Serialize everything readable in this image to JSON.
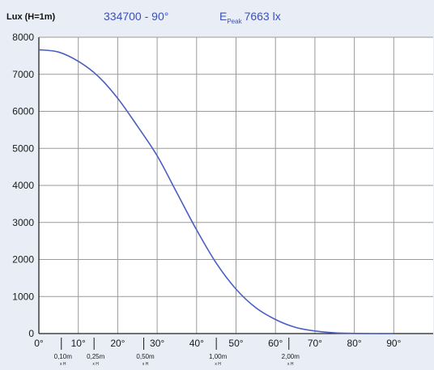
{
  "chart_data": {
    "type": "line",
    "title": "334700 - 90°",
    "ylabel": "Lux (H=1m)",
    "xlabel": "",
    "peak": {
      "symbol": "E",
      "subscript": "Peak",
      "value": "7663 lx"
    },
    "xlim": [
      0,
      100
    ],
    "ylim": [
      0,
      8000
    ],
    "grid": true,
    "y_ticks": [
      0,
      1000,
      2000,
      3000,
      4000,
      5000,
      6000,
      7000,
      8000
    ],
    "x_ticks": [
      {
        "value": 0,
        "label": "0°"
      },
      {
        "value": 10,
        "label": "10°"
      },
      {
        "value": 20,
        "label": "20°"
      },
      {
        "value": 30,
        "label": "30°"
      },
      {
        "value": 40,
        "label": "40°"
      },
      {
        "value": 50,
        "label": "50°"
      },
      {
        "value": 60,
        "label": "60°"
      },
      {
        "value": 70,
        "label": "70°"
      },
      {
        "value": 80,
        "label": "80°"
      },
      {
        "value": 90,
        "label": "90°"
      }
    ],
    "distance_markers": [
      {
        "angle": 5.7,
        "label": "0,10m",
        "sub": "x H"
      },
      {
        "angle": 14.0,
        "label": "0,25m",
        "sub": "x H"
      },
      {
        "angle": 26.6,
        "label": "0,50m",
        "sub": "x H"
      },
      {
        "angle": 45.0,
        "label": "1,00m",
        "sub": "x H"
      },
      {
        "angle": 63.4,
        "label": "2,00m",
        "sub": "x H"
      }
    ],
    "series": [
      {
        "color": "#4a5fc1",
        "x": [
          0,
          5,
          10,
          15,
          20,
          25,
          30,
          35,
          40,
          45,
          50,
          55,
          60,
          65,
          70,
          75,
          80,
          85,
          90
        ],
        "y": [
          7663,
          7600,
          7350,
          6950,
          6350,
          5600,
          4800,
          3800,
          2800,
          1900,
          1200,
          700,
          380,
          170,
          70,
          20,
          5,
          0,
          0
        ]
      }
    ]
  }
}
